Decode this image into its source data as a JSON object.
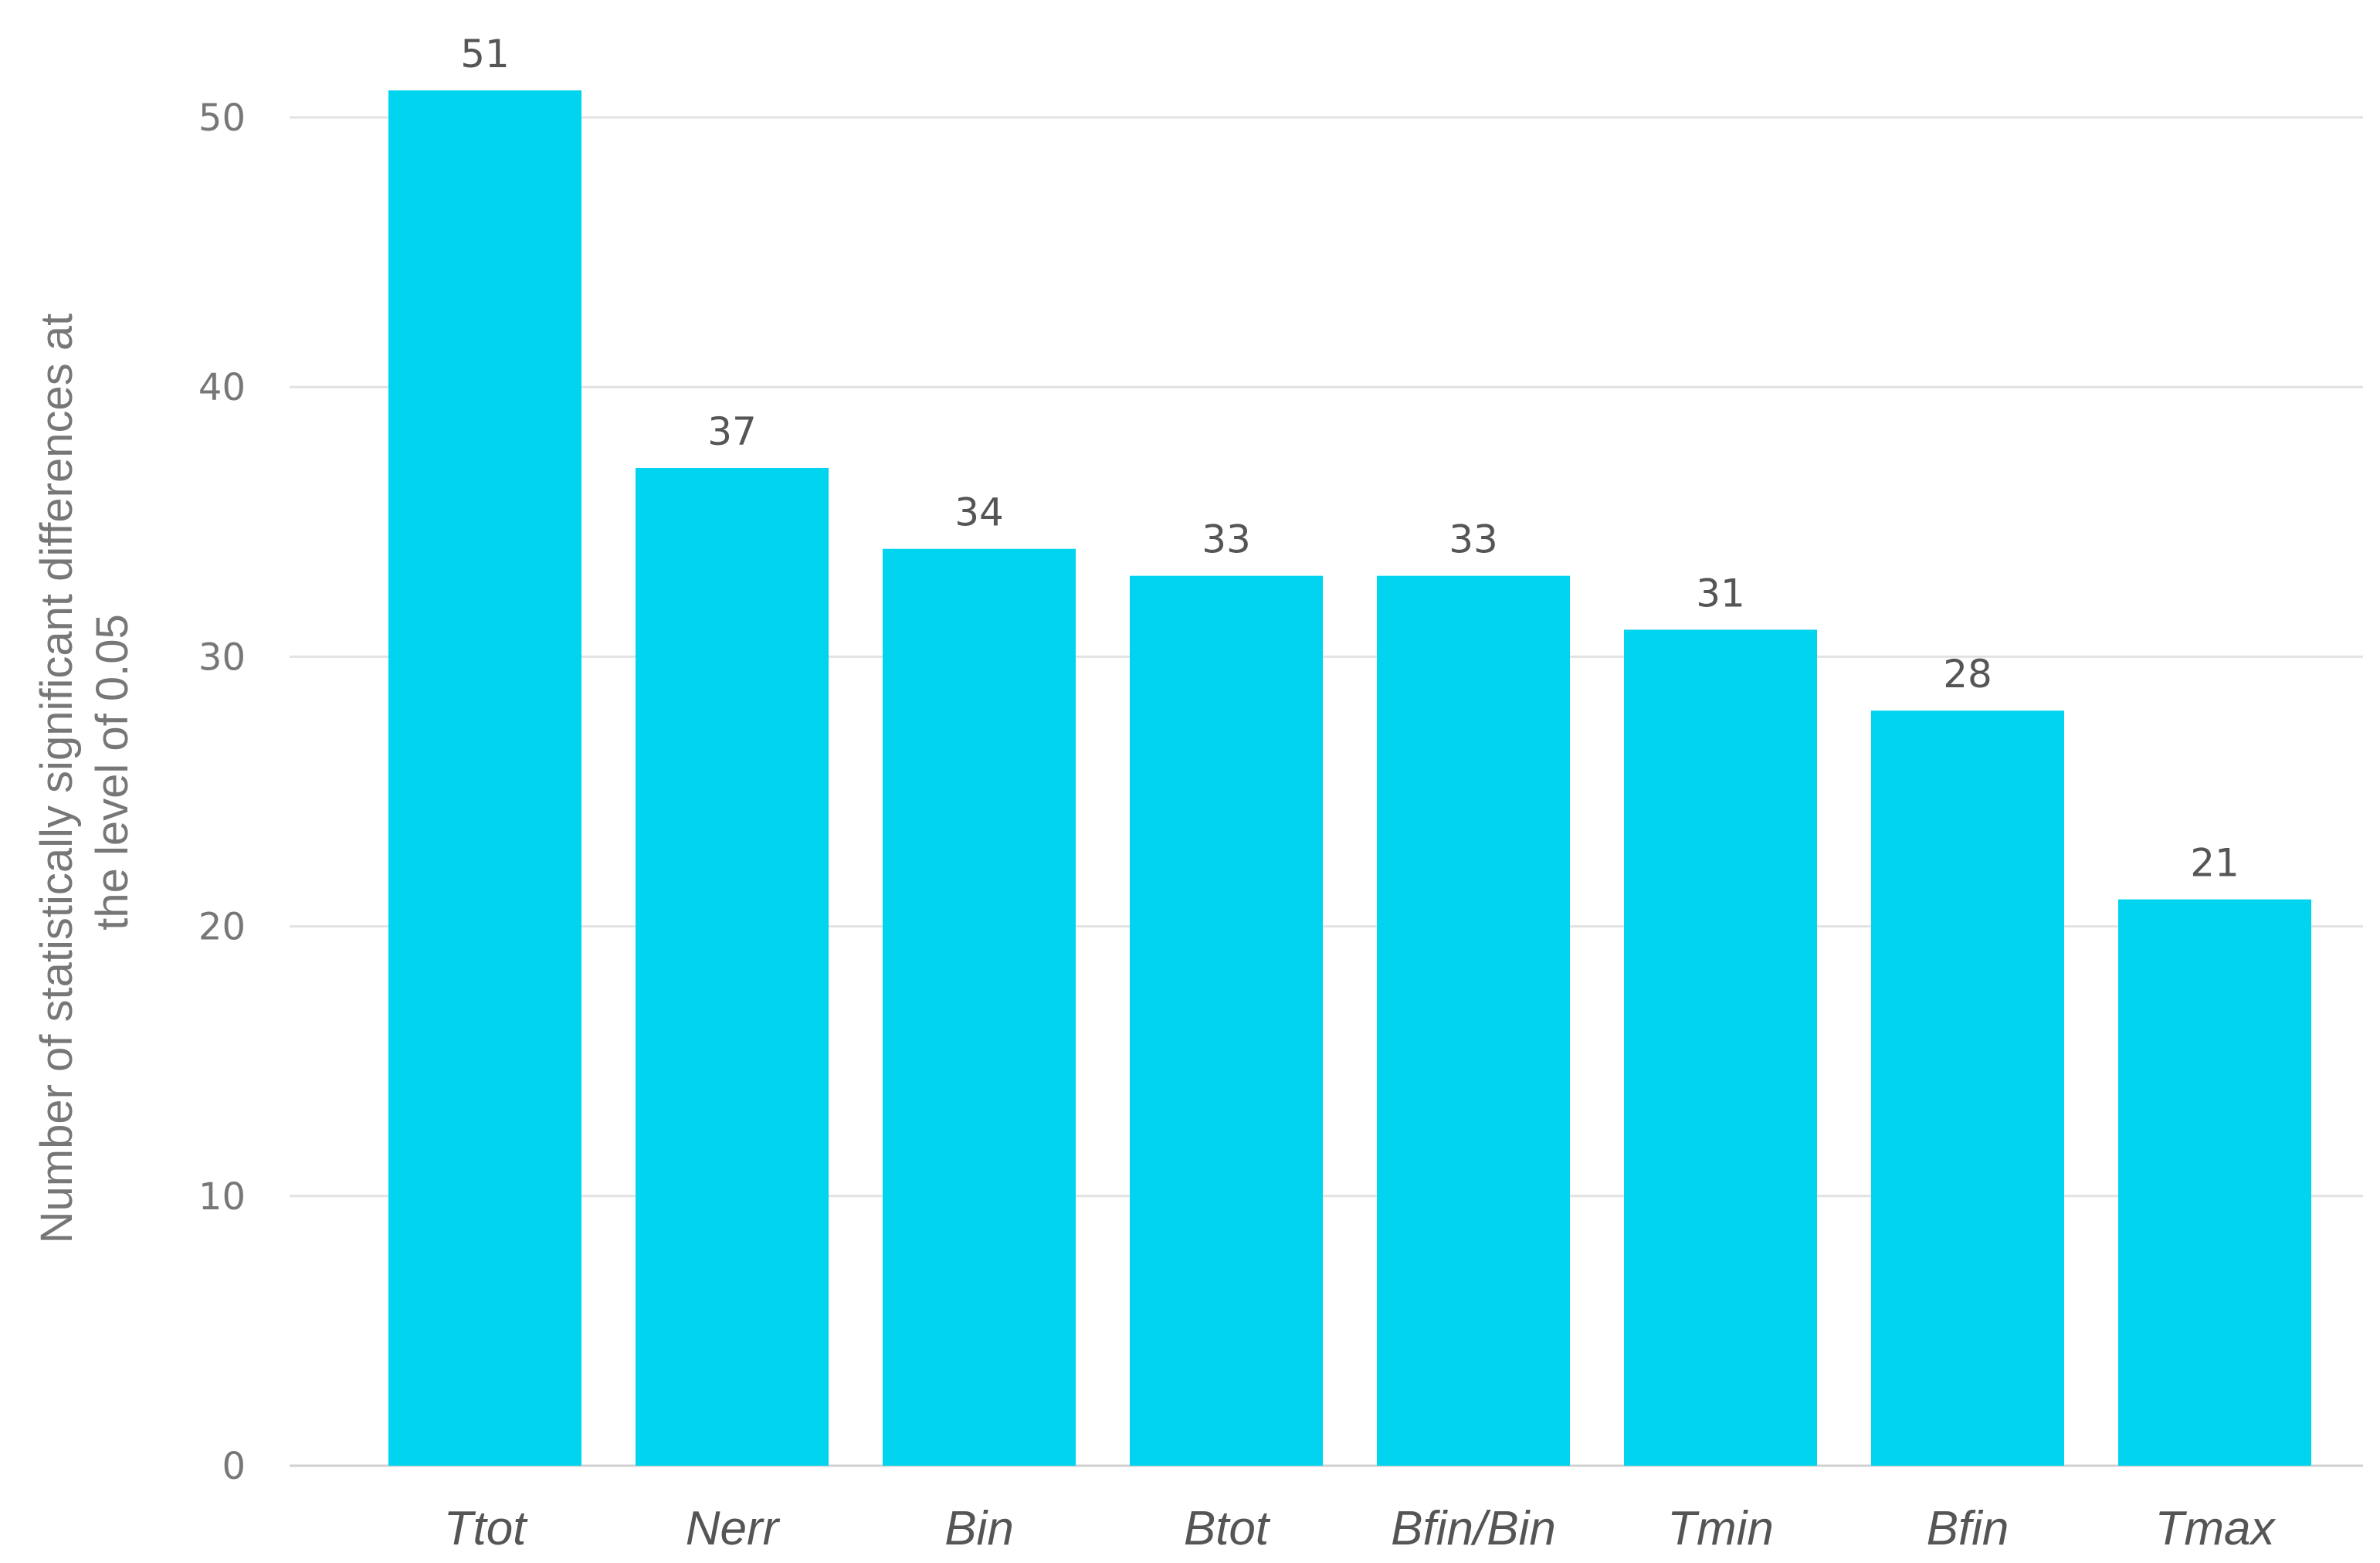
{
  "chart_data": {
    "type": "bar",
    "categories": [
      "Ttot",
      "Nerr",
      "Bin",
      "Btot",
      "Bfin/Bin",
      "Tmin",
      "Bfin",
      "Tmax"
    ],
    "values": [
      51,
      37,
      34,
      33,
      33,
      31,
      28,
      21
    ],
    "data_labels": [
      "51",
      "37",
      "34",
      "33",
      "33",
      "31",
      "28",
      "21"
    ],
    "title": "",
    "xlabel": "",
    "ylabel_lines": [
      "Number of statistically  significant differences at",
      "the level of 0.05"
    ],
    "ylim": [
      0,
      50
    ],
    "yticks": [
      0,
      10,
      20,
      30,
      40,
      50
    ],
    "ytick_labels": [
      "0",
      "10",
      "20",
      "30",
      "40",
      "50"
    ],
    "grid": true,
    "legend": "none",
    "bar_color": "#00d4ee",
    "grid_color": "#e2e2e2"
  }
}
